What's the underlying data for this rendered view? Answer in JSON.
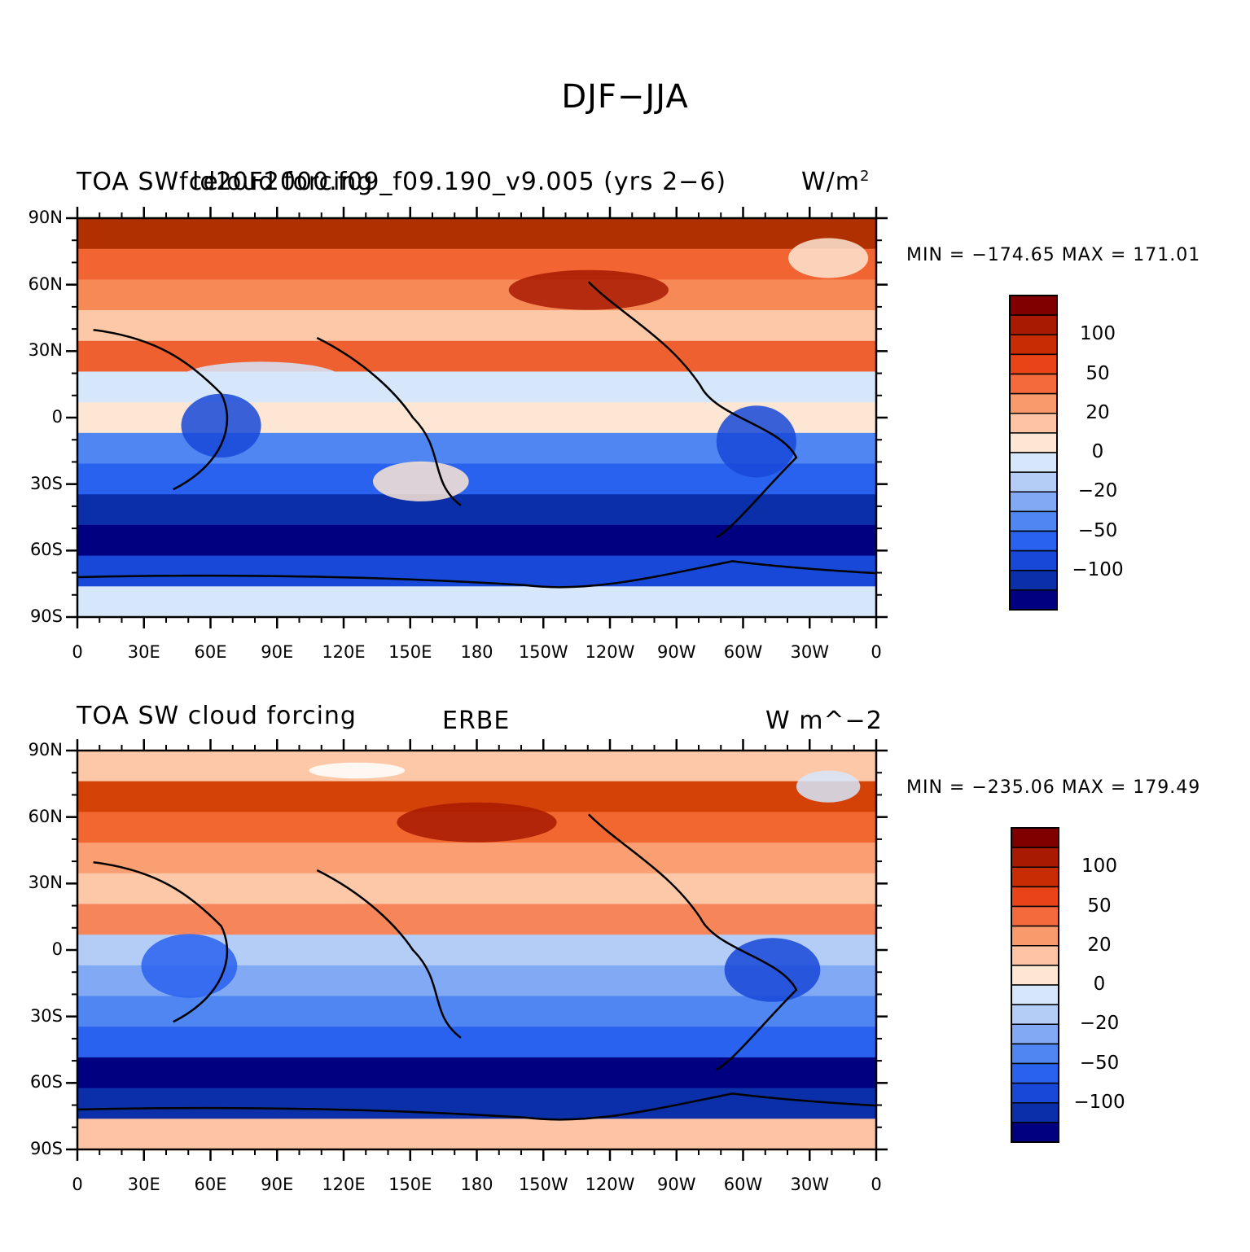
{
  "title": "DJF−JJA",
  "panels": [
    {
      "left_title": "TOA SWfceloud forcing",
      "center_title": "",
      "overlay_title": "ld20F2000.f09_f09.190_v9.005 (yrs 2−6)",
      "units_base": "W/m",
      "units_sup": "2",
      "minmax": "MIN = −174.65  MAX = 171.01"
    },
    {
      "left_title": "TOA SW cloud forcing",
      "center_title": "ERBE",
      "overlay_title": "",
      "units_base": "W m^−2",
      "units_sup": "",
      "minmax": "MIN = −235.06  MAX = 179.49"
    }
  ],
  "axes": {
    "lat_ticks": [
      "90N",
      "60N",
      "30N",
      "0",
      "30S",
      "60S",
      "90S"
    ],
    "lon_ticks": [
      "0",
      "30E",
      "60E",
      "90E",
      "120E",
      "150E",
      "180",
      "150W",
      "120W",
      "90W",
      "60W",
      "30W",
      "0"
    ]
  },
  "colorbar": {
    "colors": [
      "#000080",
      "#0a2fa8",
      "#1848d8",
      "#2a62f0",
      "#4f86f2",
      "#82aaf4",
      "#b4cdf7",
      "#d6e6fb",
      "#fde6d4",
      "#fcc4a4",
      "#f99a6c",
      "#f46a3c",
      "#e84418",
      "#c72c05",
      "#a81a02",
      "#800000"
    ],
    "labels": [
      "100",
      "50",
      "20",
      "0",
      "−20",
      "−50",
      "−100"
    ]
  },
  "map_bands": {
    "panel1": [
      "#b03002",
      "#f26432",
      "#f68a56",
      "#fcc8a8",
      "#ef6030",
      "#d6e6fb",
      "#fde6d4",
      "#4f86f2",
      "#2a62f0",
      "#0a2fa8",
      "#000080",
      "#1848d8",
      "#d6e6fb"
    ],
    "panel2": [
      "#fcc8a8",
      "#d54208",
      "#f2662f",
      "#f99f72",
      "#fcc8a8",
      "#f6865a",
      "#b4cdf7",
      "#82aaf4",
      "#4f86f2",
      "#2a62f0",
      "#000080",
      "#0a2fa8",
      "#fcc4a4"
    ]
  }
}
